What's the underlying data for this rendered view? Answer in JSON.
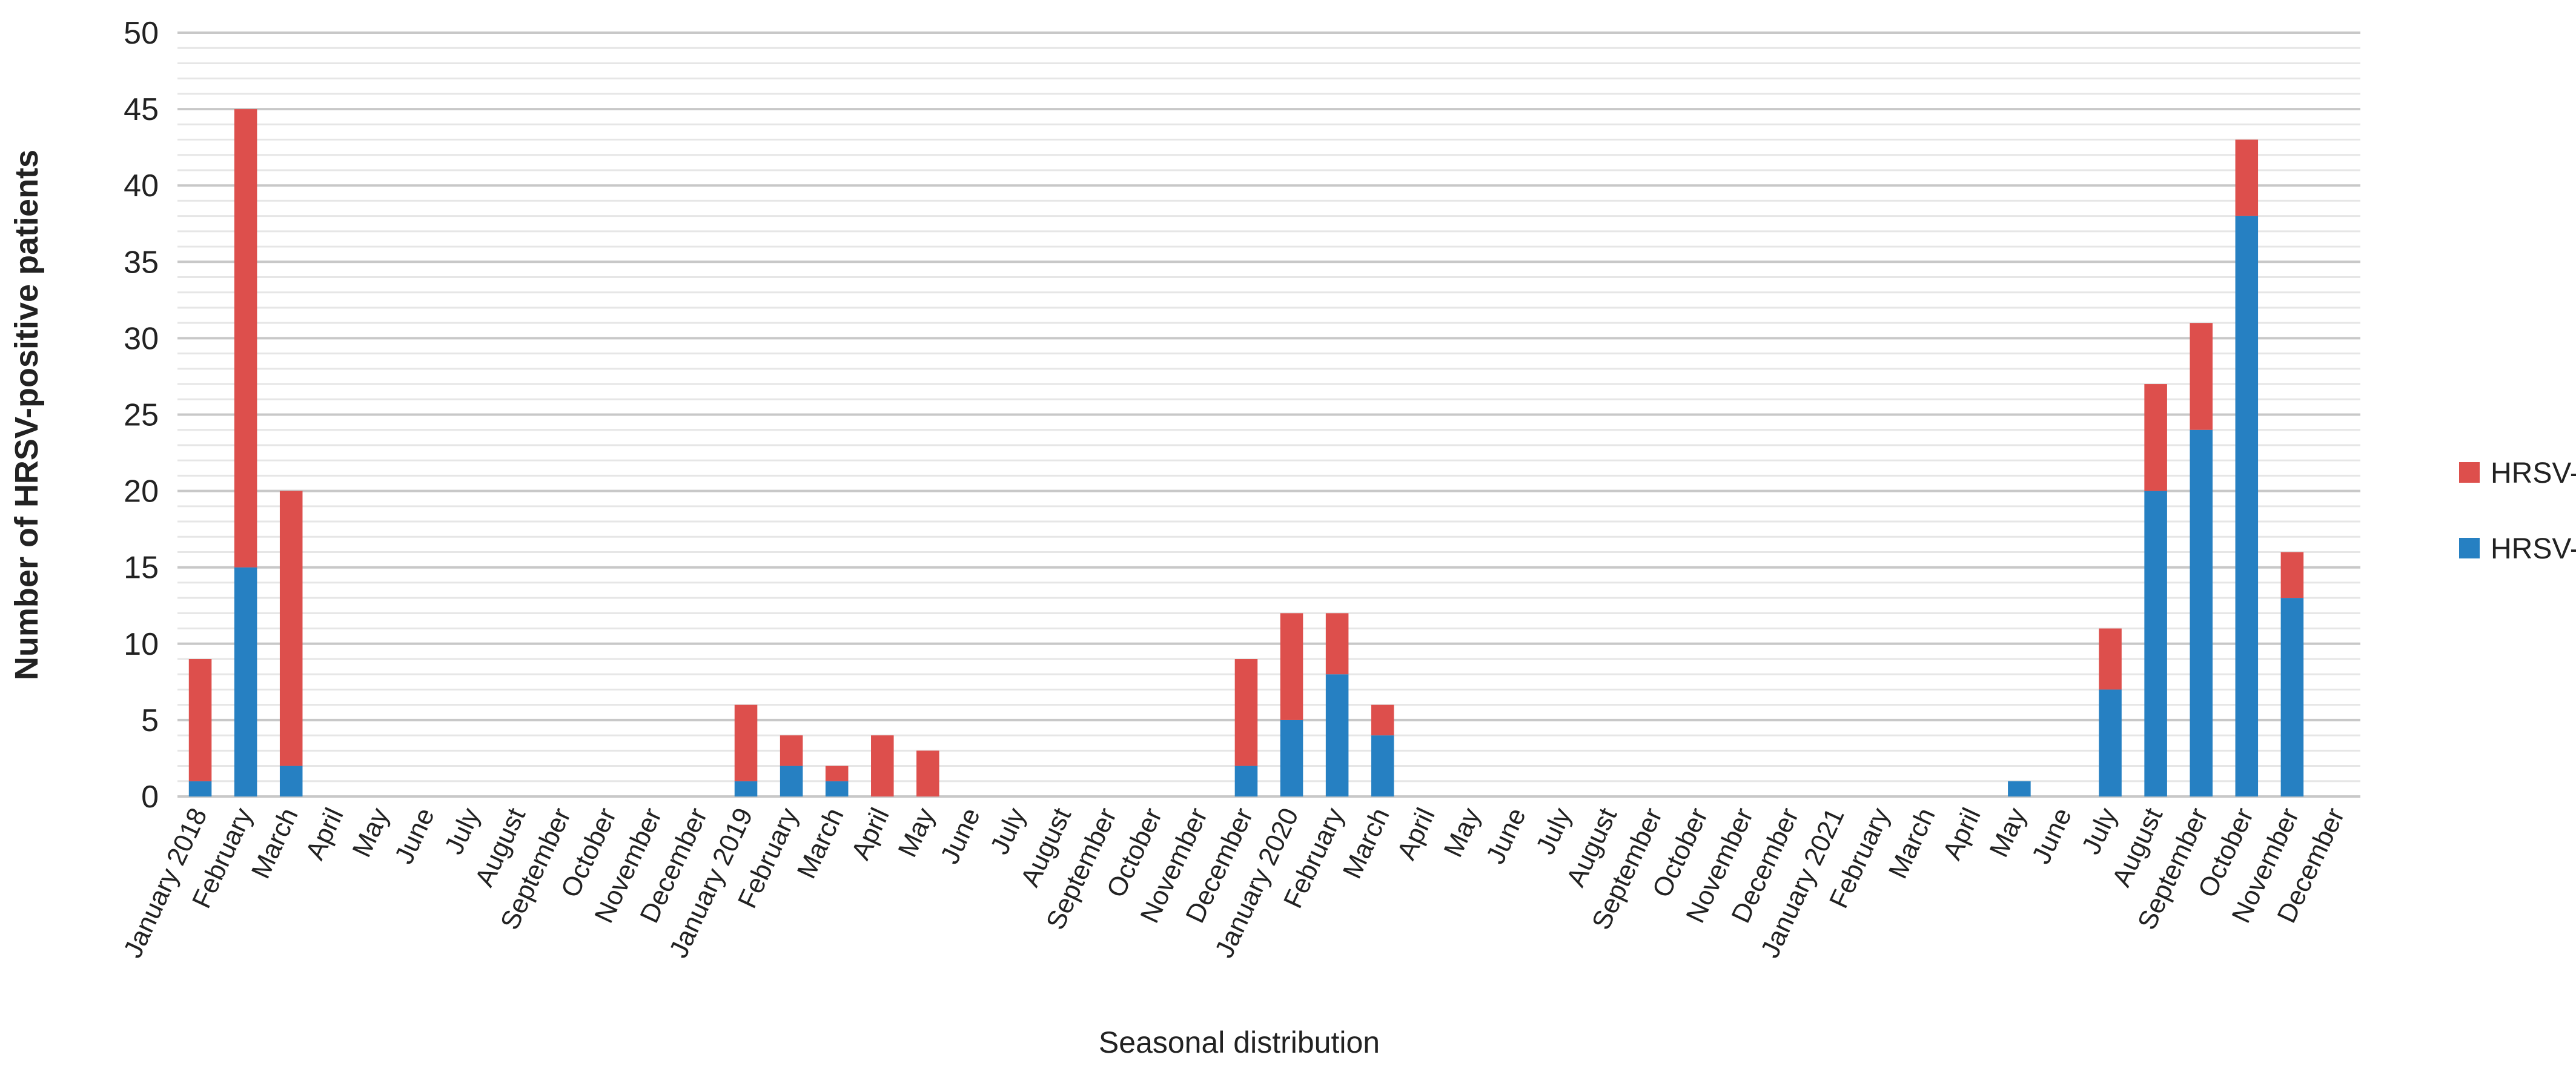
{
  "chart_data": {
    "type": "bar",
    "stacked": true,
    "xlabel": "Seasonal distribution",
    "ylabel": "Number of HRSV-positive patients",
    "ylim": [
      0,
      50
    ],
    "yticks": [
      0,
      5,
      10,
      15,
      20,
      25,
      30,
      35,
      40,
      45,
      50
    ],
    "grid": true,
    "legend_position": "right",
    "categories": [
      "January 2018",
      "February",
      "March",
      "April",
      "May",
      "June",
      "July",
      "August",
      "September",
      "October",
      "November",
      "December",
      "January 2019",
      "February",
      "March",
      "April",
      "May",
      "June",
      "July",
      "August",
      "September",
      "October",
      "November",
      "December",
      "January 2020",
      "February",
      "March",
      "April",
      "May",
      "June",
      "July",
      "August",
      "September",
      "October",
      "November",
      "December",
      "January 2021",
      "February",
      "March",
      "April",
      "May",
      "June",
      "July",
      "August",
      "September",
      "October",
      "November",
      "December"
    ],
    "series": [
      {
        "name": "HRSV-A",
        "color": "#2680c2",
        "values": [
          1,
          15,
          2,
          0,
          0,
          0,
          0,
          0,
          0,
          0,
          0,
          0,
          1,
          2,
          1,
          0,
          0,
          0,
          0,
          0,
          0,
          0,
          0,
          2,
          5,
          8,
          4,
          0,
          0,
          0,
          0,
          0,
          0,
          0,
          0,
          0,
          0,
          0,
          0,
          0,
          1,
          0,
          7,
          20,
          24,
          38,
          13,
          0
        ]
      },
      {
        "name": "HRSV-B",
        "color": "#dd4f4c",
        "values": [
          8,
          30,
          18,
          0,
          0,
          0,
          0,
          0,
          0,
          0,
          0,
          0,
          5,
          2,
          1,
          4,
          3,
          0,
          0,
          0,
          0,
          0,
          0,
          7,
          7,
          4,
          2,
          0,
          0,
          0,
          0,
          0,
          0,
          0,
          0,
          0,
          0,
          0,
          0,
          0,
          0,
          0,
          4,
          7,
          7,
          5,
          3,
          0
        ]
      }
    ],
    "legend": [
      "HRSV-B",
      "HRSV-A"
    ]
  }
}
